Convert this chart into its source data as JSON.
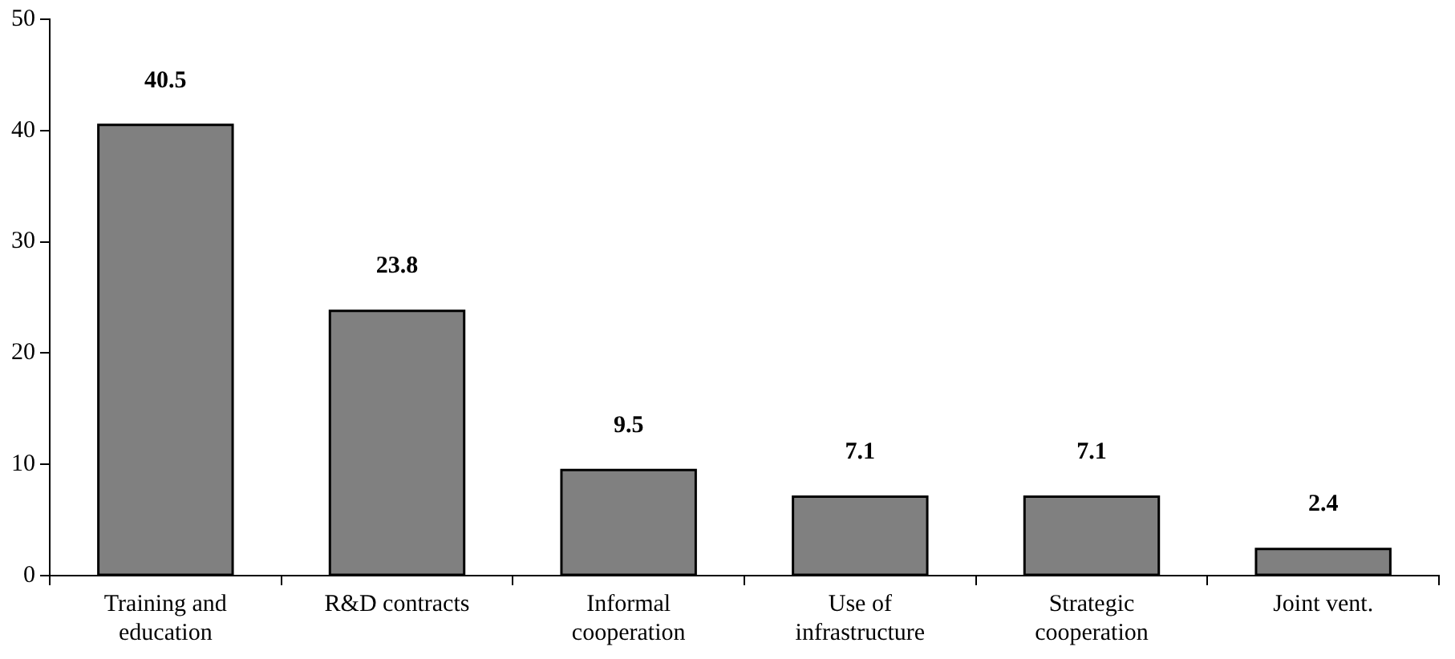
{
  "chart_data": {
    "type": "bar",
    "categories": [
      "Training and education",
      "R&D contracts",
      "Informal cooperation",
      "Use of infrastructure",
      "Strategic cooperation",
      "Joint vent."
    ],
    "values": [
      40.5,
      23.8,
      9.5,
      7.1,
      7.1,
      2.4
    ],
    "color": "#808080",
    "ylim": [
      0,
      50
    ],
    "yticks": [
      0,
      10,
      20,
      30,
      40,
      50
    ],
    "grid": false,
    "legend": false,
    "data_labels": true
  }
}
